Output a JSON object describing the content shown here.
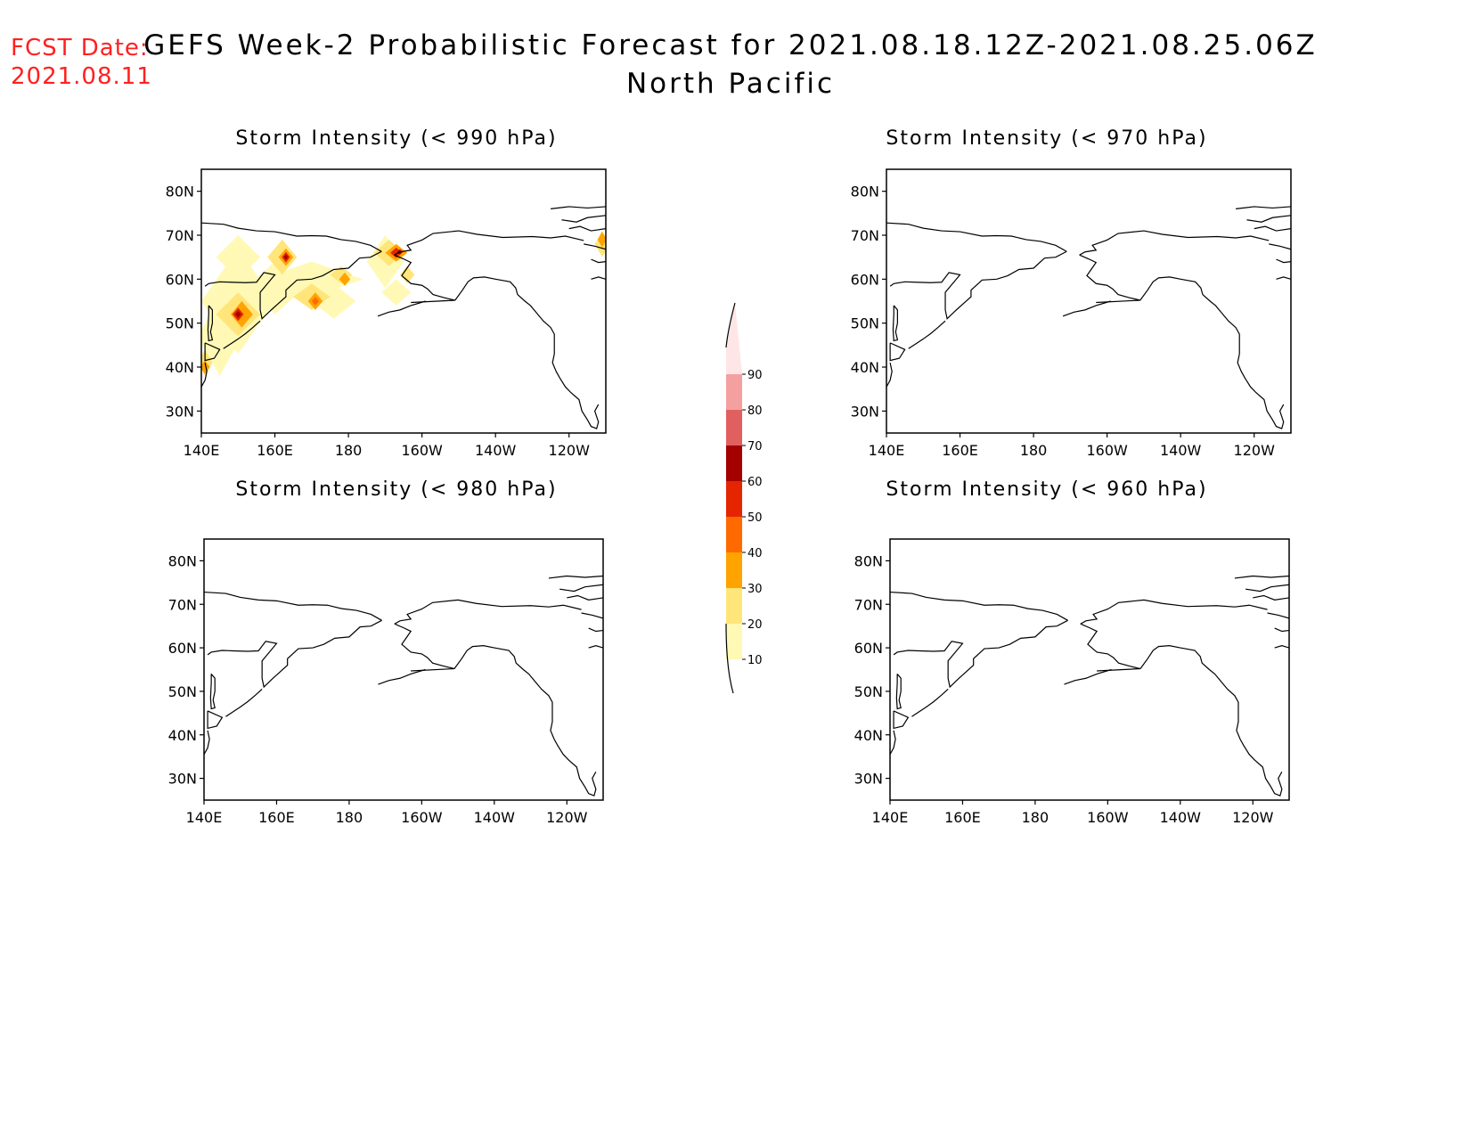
{
  "header": {
    "fcst_label": "FCST Date:",
    "fcst_date": "2021.08.11",
    "title_line1": "GEFS Week-2 Probabilistic Forecast for 2021.08.18.12Z-2021.08.25.06Z",
    "title_line2": "North Pacific"
  },
  "panels": [
    {
      "title": "Storm Intensity (< 990 hPa)",
      "has_data": true
    },
    {
      "title": "Storm Intensity (< 970 hPa)",
      "has_data": false
    },
    {
      "title": "Storm Intensity (< 980 hPa)",
      "has_data": false
    },
    {
      "title": "Storm Intensity (< 960 hPa)",
      "has_data": false
    }
  ],
  "axes": {
    "lat_labels": [
      "80N",
      "70N",
      "60N",
      "50N",
      "40N",
      "30N"
    ],
    "lon_labels": [
      "140E",
      "160E",
      "180",
      "160W",
      "140W",
      "120W"
    ]
  },
  "colorbar": {
    "labels": [
      "10",
      "20",
      "30",
      "40",
      "50",
      "60",
      "70",
      "80",
      "90"
    ],
    "colors": [
      "#fff9b5",
      "#ffe57a",
      "#ffa300",
      "#ff6a00",
      "#e52500",
      "#a30000",
      "#e06060",
      "#f5a0a0",
      "#ffe6e6"
    ]
  },
  "chart_data": {
    "type": "heatmap",
    "lat_range": [
      "25N",
      "85N"
    ],
    "lon_range": [
      "140E",
      "110W"
    ],
    "blobs_990hPa": [
      {
        "lon": "162E",
        "lat": "65N",
        "peak": 60
      },
      {
        "lon": "150E",
        "lat": "52N",
        "peak": 70
      },
      {
        "lon": "170E",
        "lat": "55N",
        "peak": 40
      },
      {
        "lon": "166W",
        "lat": "66N",
        "peak": 60
      },
      {
        "lon": "178E",
        "lat": "60N",
        "peak": 40
      },
      {
        "lon": "111W",
        "lat": "69N",
        "peak": 40
      }
    ]
  }
}
